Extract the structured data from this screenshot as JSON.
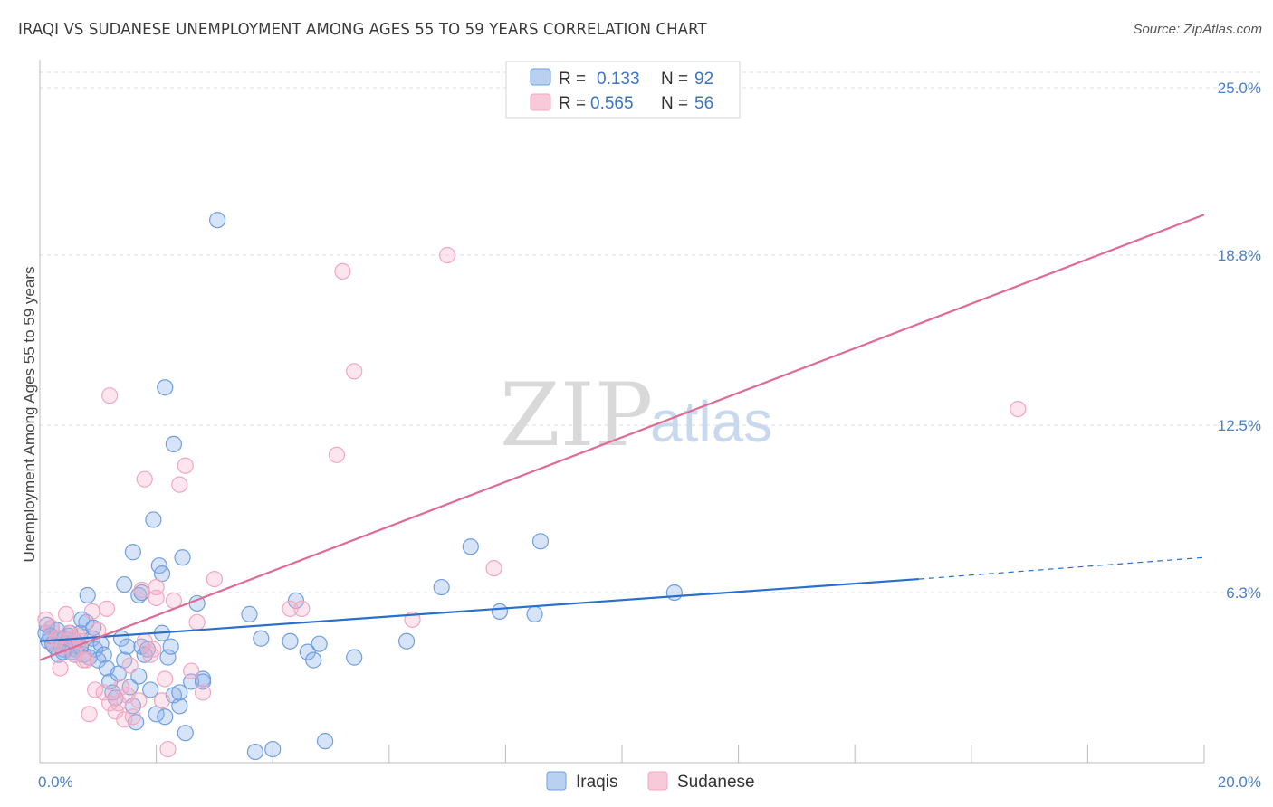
{
  "header": {
    "title": "IRAQI VS SUDANESE UNEMPLOYMENT AMONG AGES 55 TO 59 YEARS CORRELATION CHART",
    "source": "Source: ZipAtlas.com"
  },
  "watermark": {
    "zip": "ZIP",
    "atlas": "atlas"
  },
  "legend": {
    "rows": [
      {
        "r_label": "R =",
        "r_value": "0.133",
        "n_label": "N =",
        "n_value": "92"
      },
      {
        "r_label": "R =",
        "r_value": "0.565",
        "n_label": "N =",
        "n_value": "56"
      }
    ]
  },
  "chart_data": {
    "type": "scatter",
    "title": "IRAQI VS SUDANESE UNEMPLOYMENT AMONG AGES 55 TO 59 YEARS CORRELATION CHART",
    "xlabel": "",
    "ylabel": "Unemployment Among Ages 55 to 59 years",
    "xlim": [
      0,
      20
    ],
    "ylim": [
      0,
      25
    ],
    "x_tick_labels": [
      "0.0%",
      "20.0%"
    ],
    "y_ticks": [
      6.3,
      12.5,
      18.8,
      25.0
    ],
    "y_tick_labels": [
      "6.3%",
      "12.5%",
      "18.8%",
      "25.0%"
    ],
    "grid": true,
    "legend_position": "top-center",
    "colors": {
      "iraqis": "#6f9fe0",
      "sudanese": "#f2a7c0",
      "iraqis_line": "#2a6fcb",
      "sudanese_line": "#e06b94"
    },
    "series": [
      {
        "name": "Iraqis",
        "points": [
          [
            0.1,
            4.8
          ],
          [
            0.15,
            4.5
          ],
          [
            0.2,
            5.0
          ],
          [
            0.25,
            4.3
          ],
          [
            0.3,
            4.9
          ],
          [
            0.35,
            4.6
          ],
          [
            0.4,
            4.2
          ],
          [
            0.45,
            4.4
          ],
          [
            0.5,
            4.7
          ],
          [
            0.55,
            4.1
          ],
          [
            0.6,
            4.5
          ],
          [
            0.65,
            4.3
          ],
          [
            0.7,
            4.8
          ],
          [
            0.75,
            4.0
          ],
          [
            0.8,
            5.2
          ],
          [
            0.85,
            3.9
          ],
          [
            0.9,
            4.6
          ],
          [
            0.95,
            4.2
          ],
          [
            1.0,
            3.8
          ],
          [
            1.05,
            4.4
          ],
          [
            0.12,
            5.1
          ],
          [
            0.22,
            4.4
          ],
          [
            0.32,
            4.0
          ],
          [
            0.42,
            4.6
          ],
          [
            0.52,
            4.8
          ],
          [
            0.62,
            4.2
          ],
          [
            0.72,
            5.3
          ],
          [
            0.82,
            6.2
          ],
          [
            0.92,
            5.0
          ],
          [
            0.18,
            4.7
          ],
          [
            1.1,
            4.0
          ],
          [
            1.15,
            3.5
          ],
          [
            1.2,
            3.0
          ],
          [
            1.25,
            2.6
          ],
          [
            1.3,
            2.4
          ],
          [
            1.35,
            3.3
          ],
          [
            1.4,
            4.6
          ],
          [
            1.45,
            3.8
          ],
          [
            1.5,
            4.3
          ],
          [
            1.55,
            2.8
          ],
          [
            1.6,
            2.1
          ],
          [
            1.65,
            1.5
          ],
          [
            1.7,
            3.2
          ],
          [
            1.75,
            4.3
          ],
          [
            1.8,
            4.0
          ],
          [
            1.9,
            2.7
          ],
          [
            2.0,
            1.8
          ],
          [
            2.1,
            4.8
          ],
          [
            2.2,
            3.9
          ],
          [
            2.3,
            2.5
          ],
          [
            2.4,
            2.1
          ],
          [
            2.5,
            1.1
          ],
          [
            2.6,
            3.0
          ],
          [
            2.7,
            5.9
          ],
          [
            2.8,
            3.1
          ],
          [
            3.6,
            5.5
          ],
          [
            3.7,
            0.4
          ],
          [
            3.8,
            4.6
          ],
          [
            4.0,
            0.5
          ],
          [
            4.3,
            4.5
          ],
          [
            4.4,
            6.0
          ],
          [
            4.6,
            4.1
          ],
          [
            4.7,
            3.8
          ],
          [
            4.8,
            4.4
          ],
          [
            4.9,
            0.8
          ],
          [
            5.4,
            3.9
          ],
          [
            6.3,
            4.5
          ],
          [
            6.9,
            6.5
          ],
          [
            7.4,
            8.0
          ],
          [
            7.9,
            5.6
          ],
          [
            8.5,
            5.5
          ],
          [
            8.6,
            8.2
          ],
          [
            10.9,
            6.3
          ],
          [
            2.15,
            13.9
          ],
          [
            2.3,
            11.8
          ],
          [
            1.95,
            9.0
          ],
          [
            1.6,
            7.8
          ],
          [
            2.45,
            7.6
          ],
          [
            2.05,
            7.3
          ],
          [
            1.45,
            6.6
          ],
          [
            1.7,
            6.2
          ],
          [
            2.1,
            7.0
          ],
          [
            1.75,
            6.3
          ],
          [
            3.05,
            20.1
          ],
          [
            0.6,
            4.0
          ],
          [
            0.4,
            4.1
          ],
          [
            0.7,
            4.3
          ],
          [
            2.4,
            2.6
          ],
          [
            2.8,
            3.0
          ],
          [
            1.85,
            4.2
          ],
          [
            2.15,
            1.7
          ],
          [
            2.25,
            4.3
          ]
        ]
      },
      {
        "name": "Sudanese",
        "points": [
          [
            0.1,
            5.3
          ],
          [
            0.2,
            5.0
          ],
          [
            0.3,
            4.6
          ],
          [
            0.4,
            4.3
          ],
          [
            0.5,
            4.8
          ],
          [
            0.6,
            4.0
          ],
          [
            0.7,
            4.5
          ],
          [
            0.8,
            3.8
          ],
          [
            0.9,
            5.6
          ],
          [
            1.0,
            4.9
          ],
          [
            1.1,
            2.6
          ],
          [
            1.2,
            2.2
          ],
          [
            1.3,
            1.9
          ],
          [
            1.4,
            2.8
          ],
          [
            1.5,
            2.5
          ],
          [
            1.6,
            1.7
          ],
          [
            1.7,
            2.3
          ],
          [
            1.8,
            4.5
          ],
          [
            1.9,
            4.0
          ],
          [
            2.0,
            6.1
          ],
          [
            2.1,
            2.3
          ],
          [
            2.2,
            0.5
          ],
          [
            2.3,
            6.0
          ],
          [
            2.4,
            10.3
          ],
          [
            2.5,
            11.0
          ],
          [
            2.6,
            3.4
          ],
          [
            2.7,
            5.2
          ],
          [
            2.8,
            2.6
          ],
          [
            3.0,
            6.8
          ],
          [
            4.3,
            5.7
          ],
          [
            4.5,
            5.7
          ],
          [
            5.1,
            11.4
          ],
          [
            5.2,
            18.2
          ],
          [
            5.4,
            14.5
          ],
          [
            6.4,
            5.3
          ],
          [
            7.0,
            18.8
          ],
          [
            7.8,
            7.2
          ],
          [
            1.2,
            13.6
          ],
          [
            1.8,
            10.5
          ],
          [
            2.0,
            6.5
          ],
          [
            0.35,
            3.5
          ],
          [
            0.55,
            4.6
          ],
          [
            0.75,
            3.8
          ],
          [
            0.95,
            2.7
          ],
          [
            1.15,
            5.7
          ],
          [
            1.35,
            2.2
          ],
          [
            1.55,
            3.6
          ],
          [
            1.75,
            6.4
          ],
          [
            1.95,
            4.2
          ],
          [
            2.15,
            3.1
          ],
          [
            0.25,
            4.4
          ],
          [
            0.45,
            5.5
          ],
          [
            0.65,
            4.7
          ],
          [
            0.85,
            1.8
          ],
          [
            1.45,
            1.6
          ],
          [
            16.8,
            13.1
          ]
        ]
      }
    ],
    "trend_lines": [
      {
        "name": "Iraqis",
        "solid_from": [
          0,
          4.5
        ],
        "solid_to": [
          15.1,
          6.8
        ],
        "dashed_to": [
          20,
          7.6
        ]
      },
      {
        "name": "Sudanese",
        "from": [
          0,
          3.8
        ],
        "to": [
          20,
          20.3
        ]
      }
    ]
  },
  "bottom_legend": {
    "items": [
      "Iraqis",
      "Sudanese"
    ]
  }
}
